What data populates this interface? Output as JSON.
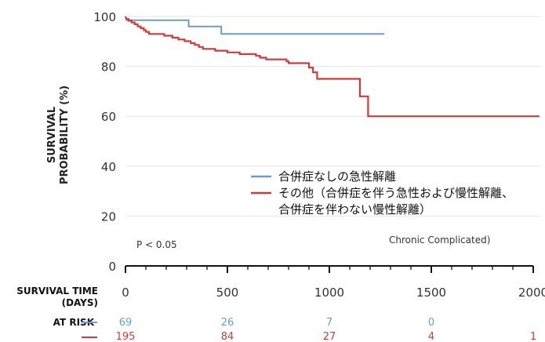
{
  "chart_data": {
    "type": "line",
    "ylabel_lines": [
      "SURVIVAL",
      "PROBABILITY (%)"
    ],
    "xlabel_lines": [
      "SURVIVAL TIME",
      "(DAYS)"
    ],
    "xlim": [
      0,
      2000
    ],
    "ylim": [
      0,
      100
    ],
    "x_ticks": [
      0,
      500,
      1000,
      1500,
      2000
    ],
    "y_ticks": [
      0,
      20,
      40,
      60,
      80,
      100
    ],
    "grid": true,
    "legend_position": "center-right",
    "series": [
      {
        "name": "合併症なしの急性解離",
        "color": "#6d9ccb",
        "points": [
          [
            0,
            100
          ],
          [
            5,
            98.5
          ],
          [
            310,
            98.5
          ],
          [
            310,
            96
          ],
          [
            470,
            96
          ],
          [
            470,
            93
          ],
          [
            1270,
            93
          ]
        ]
      },
      {
        "name_lines": [
          "その他（合併症を伴う急性および慢性解離、",
          "合併症を伴わない慢性解離）"
        ],
        "color": "#d23a3a",
        "points": [
          [
            0,
            100
          ],
          [
            5,
            99
          ],
          [
            15,
            99
          ],
          [
            15,
            98.3
          ],
          [
            30,
            98.3
          ],
          [
            30,
            97.6
          ],
          [
            45,
            97.6
          ],
          [
            45,
            96.9
          ],
          [
            60,
            96.9
          ],
          [
            60,
            96
          ],
          [
            75,
            96
          ],
          [
            75,
            95.3
          ],
          [
            90,
            95.3
          ],
          [
            90,
            94.5
          ],
          [
            100,
            94.5
          ],
          [
            100,
            93.8
          ],
          [
            115,
            93.8
          ],
          [
            115,
            93
          ],
          [
            190,
            93
          ],
          [
            190,
            92.3
          ],
          [
            230,
            92.3
          ],
          [
            230,
            91.5
          ],
          [
            260,
            91.5
          ],
          [
            260,
            90.8
          ],
          [
            290,
            90.8
          ],
          [
            290,
            90.1
          ],
          [
            320,
            90.1
          ],
          [
            320,
            89.3
          ],
          [
            340,
            89.3
          ],
          [
            340,
            88.6
          ],
          [
            360,
            88.6
          ],
          [
            360,
            87.8
          ],
          [
            380,
            87.8
          ],
          [
            380,
            87
          ],
          [
            440,
            87
          ],
          [
            440,
            86.3
          ],
          [
            500,
            86.3
          ],
          [
            500,
            85.6
          ],
          [
            560,
            85.6
          ],
          [
            560,
            84.9
          ],
          [
            640,
            84.9
          ],
          [
            640,
            84.2
          ],
          [
            660,
            84.2
          ],
          [
            660,
            83.5
          ],
          [
            690,
            83.5
          ],
          [
            690,
            82.8
          ],
          [
            790,
            82.8
          ],
          [
            790,
            82
          ],
          [
            800,
            82
          ],
          [
            800,
            81.3
          ],
          [
            900,
            81.3
          ],
          [
            900,
            79.5
          ],
          [
            920,
            79.5
          ],
          [
            920,
            77.6
          ],
          [
            940,
            77.6
          ],
          [
            940,
            75
          ],
          [
            1150,
            75
          ],
          [
            1150,
            68
          ],
          [
            1190,
            68
          ],
          [
            1190,
            60
          ],
          [
            2030,
            60
          ]
        ]
      }
    ],
    "annotations": {
      "p_value": "P < 0.05",
      "extra_label": "Chronic Complicated)"
    },
    "at_risk": {
      "label": "AT RISK",
      "times": [
        0,
        500,
        1000,
        1500,
        2000
      ],
      "rows": [
        {
          "color": "#6d9ccb",
          "values": [
            "69",
            "26",
            "7",
            "0"
          ]
        },
        {
          "color": "#d23a3a",
          "values": [
            "195",
            "84",
            "27",
            "4",
            "1"
          ]
        }
      ]
    }
  }
}
